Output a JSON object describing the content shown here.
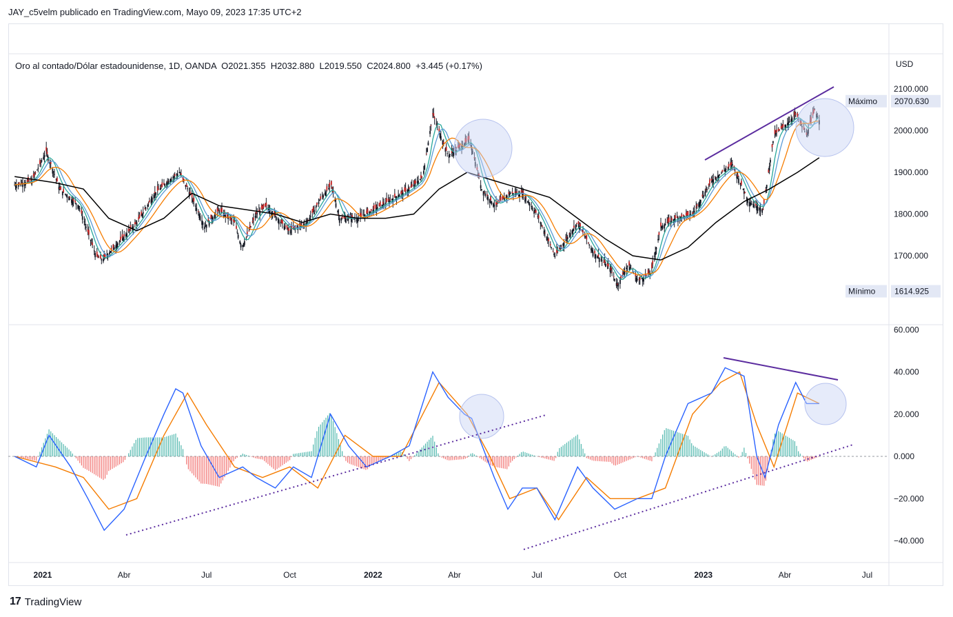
{
  "header": {
    "published_line": "JAY_c5velm publicado en TradingView.com, Mayo 09, 2023 17:35 UTC+2"
  },
  "symbol": {
    "info_line": "Oro al contado/Dólar estadounidense, 1D, OANDA  O2021.355  H2032.880  L2019.550  C2024.800  +3.445 (+0.17%)"
  },
  "footer": {
    "brand": "TradingView",
    "logo_glyph": "17"
  },
  "colors": {
    "up": "#26a69a",
    "down": "#ef5350",
    "price_candle": "#131722",
    "ema_fast": "#26a69a",
    "ema_mid": "#5b9bd5",
    "ema_orange": "#f57c00",
    "sma_black": "#000000",
    "trend": "#5b2c9f",
    "highlight": "#c8d2f5",
    "macd": "#2962ff",
    "signal": "#f57c00"
  },
  "chart_data": [
    {
      "type": "line",
      "title": "",
      "pane": "price",
      "y_axis": {
        "unit": "USD",
        "ticks": [
          "2100.000",
          "2000.000",
          "1900.000",
          "1800.000",
          "1700.000"
        ],
        "ylim": [
          1555,
          2190
        ]
      },
      "x_axis": {
        "ticks": [
          "2021",
          "Abr",
          "Jul",
          "Oct",
          "2022",
          "Abr",
          "Jul",
          "Oct",
          "2023",
          "Abr",
          "Jul"
        ],
        "bold": [
          true,
          false,
          false,
          false,
          true,
          false,
          false,
          false,
          true,
          false,
          false
        ]
      },
      "labels": {
        "max_label": "Máximo",
        "max_value": "2070.630",
        "min_label": "Mínimo",
        "min_value": "1614.925"
      },
      "series": [
        {
          "x": [
            "2020-12-01",
            "2020-12-20",
            "2021-01-05",
            "2021-01-20",
            "2021-02-10",
            "2021-03-01",
            "2021-03-08",
            "2021-03-25",
            "2021-04-15",
            "2021-05-05",
            "2021-05-20",
            "2021-06-01",
            "2021-06-15",
            "2021-06-29",
            "2021-07-15",
            "2021-08-01",
            "2021-08-09",
            "2021-08-25",
            "2021-09-05",
            "2021-09-30",
            "2021-10-20",
            "2021-11-05",
            "2021-11-16",
            "2021-11-25",
            "2021-12-15",
            "2022-01-01",
            "2022-01-25",
            "2022-02-10",
            "2022-02-25",
            "2022-03-08",
            "2022-03-25",
            "2022-04-18",
            "2022-05-01",
            "2022-05-16",
            "2022-06-01",
            "2022-06-15",
            "2022-07-01",
            "2022-07-21",
            "2022-08-15",
            "2022-09-01",
            "2022-09-20",
            "2022-09-28",
            "2022-10-10",
            "2022-10-21",
            "2022-11-04",
            "2022-11-15",
            "2022-12-01",
            "2022-12-20",
            "2023-01-10",
            "2023-02-02",
            "2023-02-20",
            "2023-03-08",
            "2023-03-20",
            "2023-04-05",
            "2023-04-13",
            "2023-04-25",
            "2023-05-04",
            "2023-05-09"
          ],
          "y": [
            1870,
            1880,
            1950,
            1860,
            1820,
            1700,
            1690,
            1730,
            1780,
            1850,
            1880,
            1900,
            1840,
            1770,
            1810,
            1780,
            1720,
            1800,
            1820,
            1760,
            1780,
            1840,
            1870,
            1790,
            1790,
            1810,
            1840,
            1860,
            1890,
            2040,
            1940,
            1980,
            1860,
            1820,
            1850,
            1850,
            1800,
            1700,
            1780,
            1710,
            1670,
            1630,
            1680,
            1640,
            1660,
            1770,
            1790,
            1800,
            1880,
            1920,
            1830,
            1810,
            1990,
            2020,
            2040,
            1990,
            2050,
            2025
          ]
        },
        {
          "name": "",
          "x": [
            "2020-12-01",
            "2021-01-15",
            "2021-02-15",
            "2021-03-15",
            "2021-04-15",
            "2021-05-15",
            "2021-06-15",
            "2021-07-15",
            "2021-08-15",
            "2021-09-15",
            "2021-10-15",
            "2021-11-15",
            "2021-12-15",
            "2022-01-15",
            "2022-02-15",
            "2022-03-15",
            "2022-04-15",
            "2022-05-15",
            "2022-06-15",
            "2022-07-15",
            "2022-08-15",
            "2022-09-15",
            "2022-10-15",
            "2022-11-15",
            "2022-12-15",
            "2023-01-15",
            "2023-02-15",
            "2023-03-15",
            "2023-04-15",
            "2023-05-09"
          ],
          "y": [
            1890,
            1875,
            1860,
            1790,
            1760,
            1790,
            1850,
            1820,
            1810,
            1800,
            1780,
            1800,
            1790,
            1790,
            1800,
            1860,
            1900,
            1880,
            1860,
            1840,
            1790,
            1740,
            1700,
            1690,
            1720,
            1780,
            1830,
            1860,
            1900,
            1935
          ]
        }
      ]
    },
    {
      "type": "line",
      "title": "",
      "pane": "macd",
      "y_axis": {
        "ticks": [
          "60.000",
          "40.000",
          "20.000",
          "0.000",
          "−20.000",
          "−40.000"
        ],
        "ylim": [
          -50,
          60
        ]
      },
      "series": [
        {
          "name": "",
          "x": [
            "2020-12-01",
            "2020-12-25",
            "2021-01-08",
            "2021-02-01",
            "2021-02-20",
            "2021-03-10",
            "2021-04-01",
            "2021-04-25",
            "2021-05-15",
            "2021-05-28",
            "2021-06-05",
            "2021-06-25",
            "2021-07-15",
            "2021-08-10",
            "2021-08-25",
            "2021-09-15",
            "2021-10-05",
            "2021-10-25",
            "2021-11-15",
            "2021-12-05",
            "2021-12-25",
            "2022-01-20",
            "2022-02-10",
            "2022-03-08",
            "2022-03-25",
            "2022-04-12",
            "2022-04-20",
            "2022-05-15",
            "2022-05-30",
            "2022-06-15",
            "2022-07-01",
            "2022-07-21",
            "2022-08-15",
            "2022-09-01",
            "2022-09-25",
            "2022-10-20",
            "2022-11-05",
            "2022-11-20",
            "2022-12-15",
            "2023-01-10",
            "2023-01-25",
            "2023-02-15",
            "2023-03-01",
            "2023-03-10",
            "2023-03-25",
            "2023-04-13",
            "2023-04-25",
            "2023-05-09"
          ],
          "y": [
            0,
            -5,
            10,
            -5,
            -20,
            -35,
            -25,
            0,
            20,
            32,
            30,
            5,
            -10,
            -5,
            -10,
            -15,
            -5,
            -10,
            20,
            5,
            -5,
            0,
            5,
            40,
            28,
            20,
            18,
            -10,
            -25,
            -15,
            -15,
            -30,
            -5,
            -15,
            -25,
            -20,
            -20,
            0,
            25,
            30,
            42,
            38,
            0,
            -10,
            15,
            35,
            25,
            25
          ]
        },
        {
          "name": "",
          "x": [
            "2020-12-01",
            "2021-01-15",
            "2021-02-15",
            "2021-03-15",
            "2021-04-15",
            "2021-05-15",
            "2021-06-10",
            "2021-07-01",
            "2021-08-01",
            "2021-09-01",
            "2021-10-01",
            "2021-11-01",
            "2021-12-01",
            "2022-01-01",
            "2022-02-01",
            "2022-03-15",
            "2022-04-15",
            "2022-05-10",
            "2022-06-01",
            "2022-07-01",
            "2022-07-25",
            "2022-08-25",
            "2022-09-20",
            "2022-10-20",
            "2022-11-20",
            "2022-12-20",
            "2023-01-20",
            "2023-02-10",
            "2023-03-01",
            "2023-03-20",
            "2023-04-15",
            "2023-05-09"
          ],
          "y": [
            0,
            -5,
            -10,
            -25,
            -20,
            10,
            30,
            15,
            -5,
            -10,
            -5,
            -15,
            10,
            0,
            0,
            35,
            20,
            0,
            -20,
            -15,
            -30,
            -10,
            -20,
            -20,
            -15,
            20,
            35,
            40,
            15,
            -5,
            30,
            25
          ]
        }
      ]
    }
  ]
}
